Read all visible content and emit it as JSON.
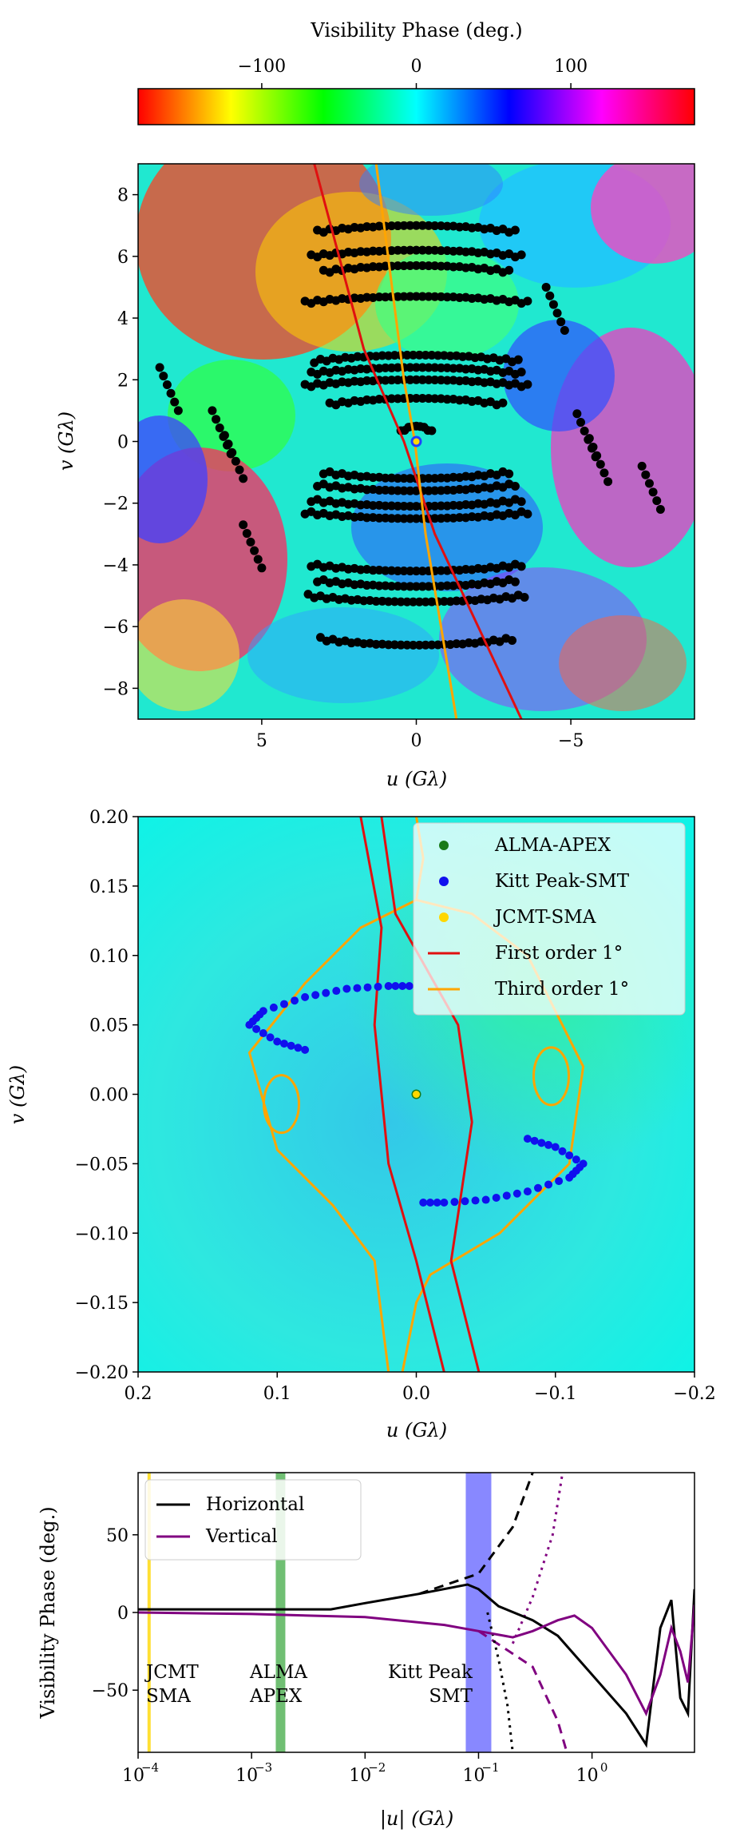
{
  "colorbar": {
    "title": "Visibility Phase (deg.)",
    "ticks": [
      "−100",
      "0",
      "100"
    ],
    "tick_values": [
      -100,
      0,
      100
    ],
    "range": [
      -180,
      180
    ]
  },
  "panel1": {
    "xlabel": "u (Gλ)",
    "ylabel": "v (Gλ)",
    "xticks": [
      "5",
      "0",
      "−5"
    ],
    "xtick_values": [
      5,
      0,
      -5
    ],
    "yticks": [
      "8",
      "6",
      "4",
      "2",
      "0",
      "−2",
      "−4",
      "−6",
      "−8"
    ],
    "ytick_values": [
      8,
      6,
      4,
      2,
      0,
      -2,
      -4,
      -6,
      -8
    ]
  },
  "panel2": {
    "xlabel": "u (Gλ)",
    "ylabel": "v (Gλ)",
    "xticks": [
      "0.2",
      "0.1",
      "0.0",
      "−0.1",
      "−0.2"
    ],
    "xtick_values": [
      0.2,
      0.1,
      0.0,
      -0.1,
      -0.2
    ],
    "yticks": [
      "0.20",
      "0.15",
      "0.10",
      "0.05",
      "0.00",
      "−0.05",
      "−0.10",
      "−0.15",
      "−0.20"
    ],
    "ytick_values": [
      0.2,
      0.15,
      0.1,
      0.05,
      0.0,
      -0.05,
      -0.1,
      -0.15,
      -0.2
    ],
    "legend": [
      {
        "label": "ALMA-APEX",
        "kind": "dot",
        "color": "#1a7a1a"
      },
      {
        "label": "Kitt Peak-SMT",
        "kind": "dot",
        "color": "#1010ee"
      },
      {
        "label": "JCMT-SMA",
        "kind": "dot",
        "color": "#ffd700"
      },
      {
        "label": "First order 1°",
        "kind": "line",
        "color": "#e01010"
      },
      {
        "label": "Third order 1°",
        "kind": "line",
        "color": "#ffa500"
      }
    ]
  },
  "panel3": {
    "xlabel": "|u| (Gλ)",
    "ylabel": "Visibility Phase (deg.)",
    "xticks": [
      "10",
      "10",
      "10",
      "10",
      "10"
    ],
    "xtick_exps": [
      "−4",
      "−3",
      "−2",
      "−1",
      "0"
    ],
    "xtick_values": [
      0.0001,
      0.001,
      0.01,
      0.1,
      1
    ],
    "yticks": [
      "50",
      "0",
      "−50"
    ],
    "ytick_values": [
      50,
      0,
      -50
    ],
    "legend": [
      {
        "label": "Horizontal",
        "color": "#000000"
      },
      {
        "label": "Vertical",
        "color": "#800080"
      }
    ],
    "annotations": [
      {
        "line1": "JCMT",
        "line2": "SMA"
      },
      {
        "line1": "ALMA",
        "line2": "APEX"
      },
      {
        "line1": "Kitt Peak",
        "line2": "SMT"
      }
    ]
  },
  "chart_data": [
    {
      "type": "heatmap",
      "description_series": "uv coverage over visibility phase map",
      "xlim": [
        9,
        -9
      ],
      "ylim": [
        -9,
        9
      ],
      "colormap": "hsv",
      "color_range_deg": [
        -180,
        180
      ],
      "scatter_color": "#000000",
      "tracks_v": [
        7.0,
        6.2,
        5.7,
        4.7,
        2.8,
        2.4,
        2.0,
        1.4,
        0.5,
        -1.2,
        -1.6,
        -2.1,
        -2.5,
        -4.2,
        -4.7,
        -5.2,
        -6.6
      ],
      "first_order_line": [
        [
          3.3,
          9
        ],
        [
          1.7,
          3
        ],
        [
          0.4,
          0
        ],
        [
          -0.6,
          -3
        ],
        [
          -3.4,
          -9
        ]
      ],
      "third_order_line": [
        [
          1.3,
          9
        ],
        [
          0.4,
          2
        ],
        [
          0.05,
          0
        ],
        [
          -0.3,
          -3
        ],
        [
          -1.3,
          -9
        ]
      ]
    },
    {
      "type": "scatter",
      "xlim": [
        0.2,
        -0.2
      ],
      "ylim": [
        -0.2,
        0.2
      ],
      "series": [
        {
          "name": "ALMA-APEX",
          "points": [
            [
              0.0,
              0.0
            ]
          ]
        },
        {
          "name": "Kitt Peak-SMT",
          "points": [
            [
              0.08,
              0.032
            ],
            [
              0.1,
              0.038
            ],
            [
              0.12,
              0.05
            ],
            [
              0.11,
              0.06
            ],
            [
              0.08,
              0.07
            ],
            [
              0.05,
              0.076
            ],
            [
              0.02,
              0.078
            ],
            [
              0.0,
              0.078
            ],
            [
              -0.08,
              -0.032
            ],
            [
              -0.1,
              -0.038
            ],
            [
              -0.12,
              -0.05
            ],
            [
              -0.11,
              -0.06
            ],
            [
              -0.08,
              -0.07
            ],
            [
              -0.05,
              -0.076
            ],
            [
              -0.02,
              -0.078
            ],
            [
              0.0,
              -0.078
            ]
          ]
        },
        {
          "name": "JCMT-SMA",
          "points": [
            [
              0.0,
              0.0
            ]
          ]
        }
      ]
    },
    {
      "type": "line",
      "xscale": "log",
      "xlim": [
        0.0001,
        8
      ],
      "ylim": [
        -90,
        90
      ],
      "series": [
        {
          "name": "Horizontal",
          "points": [
            [
              0.0001,
              2
            ],
            [
              0.001,
              2
            ],
            [
              0.005,
              2
            ],
            [
              0.01,
              6
            ],
            [
              0.03,
              12
            ],
            [
              0.08,
              18
            ],
            [
              0.1,
              15
            ],
            [
              0.15,
              4
            ],
            [
              0.3,
              -5
            ],
            [
              0.5,
              -15
            ],
            [
              1.0,
              -40
            ],
            [
              2.0,
              -65
            ],
            [
              3.0,
              -85
            ],
            [
              4.0,
              -10
            ],
            [
              5.0,
              8
            ],
            [
              6.0,
              -55
            ],
            [
              7.0,
              -65
            ],
            [
              8.0,
              15
            ]
          ]
        },
        {
          "name": "Vertical",
          "points": [
            [
              0.0001,
              0
            ],
            [
              0.001,
              -1
            ],
            [
              0.01,
              -3
            ],
            [
              0.05,
              -8
            ],
            [
              0.1,
              -12
            ],
            [
              0.2,
              -16
            ],
            [
              0.3,
              -12
            ],
            [
              0.5,
              -5
            ],
            [
              0.7,
              -2
            ],
            [
              1.0,
              -10
            ],
            [
              2.0,
              -40
            ],
            [
              3.0,
              -65
            ],
            [
              4.0,
              -40
            ],
            [
              5.0,
              -10
            ],
            [
              6.0,
              -25
            ],
            [
              7.0,
              -45
            ],
            [
              8.0,
              5
            ]
          ]
        }
      ],
      "bands": [
        {
          "x": 0.000125,
          "color": "#ffd700"
        },
        {
          "x": 0.0018,
          "color": "#4caf50"
        },
        {
          "x": 0.1,
          "color": "#6060ff"
        }
      ]
    }
  ]
}
